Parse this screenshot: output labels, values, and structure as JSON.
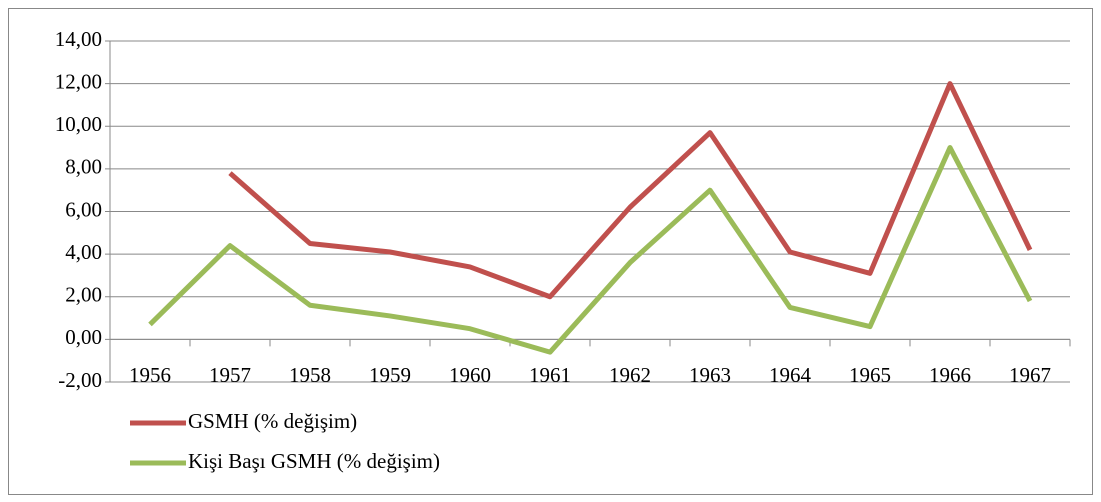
{
  "chart_data": {
    "type": "line",
    "categories": [
      "1956",
      "1957",
      "1958",
      "1959",
      "1960",
      "1961",
      "1962",
      "1963",
      "1964",
      "1965",
      "1966",
      "1967"
    ],
    "series": [
      {
        "name": "GSMH (% değişim)",
        "color": "#c0504d",
        "values": [
          null,
          7.8,
          4.5,
          4.1,
          3.4,
          2.0,
          6.2,
          9.7,
          4.1,
          3.1,
          12.0,
          4.2
        ]
      },
      {
        "name": "Kişi Başı GSMH (% değişim)",
        "color": "#9bbb59",
        "values": [
          0.7,
          4.4,
          1.6,
          1.1,
          0.5,
          -0.6,
          3.6,
          7.0,
          1.5,
          0.6,
          9.0,
          1.8
        ]
      }
    ],
    "ylim": [
      -2,
      14
    ],
    "yticks": [
      {
        "value": -2,
        "label": "-2,00"
      },
      {
        "value": 0,
        "label": "0,00"
      },
      {
        "value": 2,
        "label": "2,00"
      },
      {
        "value": 4,
        "label": "4,00"
      },
      {
        "value": 6,
        "label": "6,00"
      },
      {
        "value": 8,
        "label": "8,00"
      },
      {
        "value": 10,
        "label": "10,00"
      },
      {
        "value": 12,
        "label": "12,00"
      },
      {
        "value": 14,
        "label": "14,00"
      }
    ],
    "grid": true,
    "legend": "bottom"
  }
}
